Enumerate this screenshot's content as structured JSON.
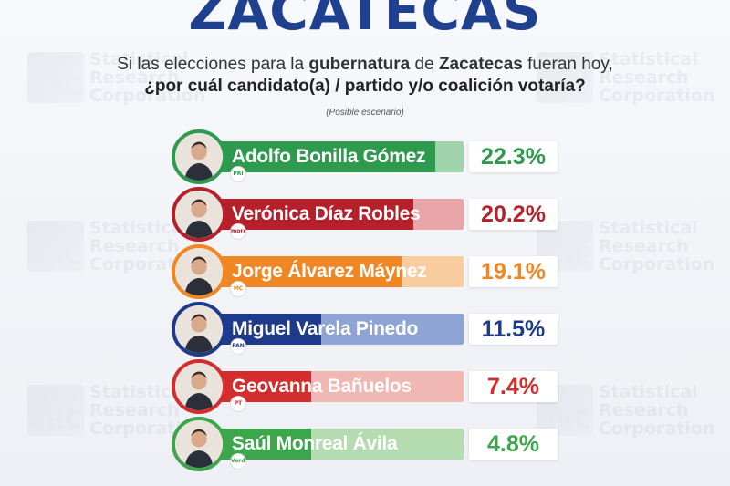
{
  "title": "ZACATECAS",
  "question_part1": "Si las elecciones para la",
  "question_bold1": "gubernatura",
  "question_part2": "de",
  "question_bold2": "Zacatecas",
  "question_part3": "fueran hoy,",
  "question_line2": "¿por cuál candidato(a) / partido y/o coalición votaría?",
  "note": "(Posible escenario)",
  "watermark": {
    "logo": "SRC",
    "line1": "Statistical",
    "line2": "Research",
    "line3": "Corporation"
  },
  "chart_data": {
    "type": "bar",
    "orientation": "horizontal",
    "categories": [
      "Adolfo Bonilla Gómez",
      "Verónica Díaz Robles",
      "Jorge Álvarez Máynez",
      "Miguel Varela Pinedo",
      "Geovanna Bañuelos",
      "Saúl Monreal Ávila"
    ],
    "values": [
      22.3,
      20.2,
      19.1,
      11.5,
      7.4,
      4.8
    ],
    "value_labels": [
      "22.3%",
      "20.2%",
      "19.1%",
      "11.5%",
      "7.4%",
      "4.8%"
    ],
    "party_logos": [
      "PRI",
      "morena",
      "MC",
      "PAN",
      "PT",
      "Verde"
    ],
    "colors": [
      {
        "dark": "#2e9a4d",
        "light": "#9fd3ac",
        "text": "#2e9a4d"
      },
      {
        "dark": "#b5202b",
        "light": "#e9a6a8",
        "text": "#b5202b"
      },
      {
        "dark": "#f08722",
        "light": "#f9cc9f",
        "text": "#f08722"
      },
      {
        "dark": "#1e3a8a",
        "light": "#8ea4d4",
        "text": "#1e3a8a"
      },
      {
        "dark": "#d42d2d",
        "light": "#f0b7b3",
        "text": "#d42d2d"
      },
      {
        "dark": "#3da54b",
        "light": "#b4dcb0",
        "text": "#3da54b"
      }
    ],
    "xlim": [
      0,
      25
    ],
    "title": "",
    "xlabel": "",
    "ylabel": ""
  }
}
